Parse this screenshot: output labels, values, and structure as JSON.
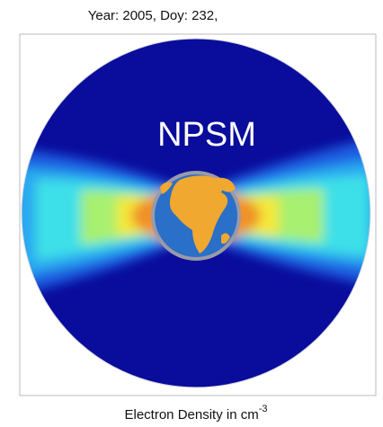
{
  "header": {
    "title": "Year: 2005, Doy: 232,"
  },
  "figure": {
    "label": "NPSM"
  },
  "caption": {
    "text": "Electron Density in cm",
    "superscript": "-3"
  }
}
